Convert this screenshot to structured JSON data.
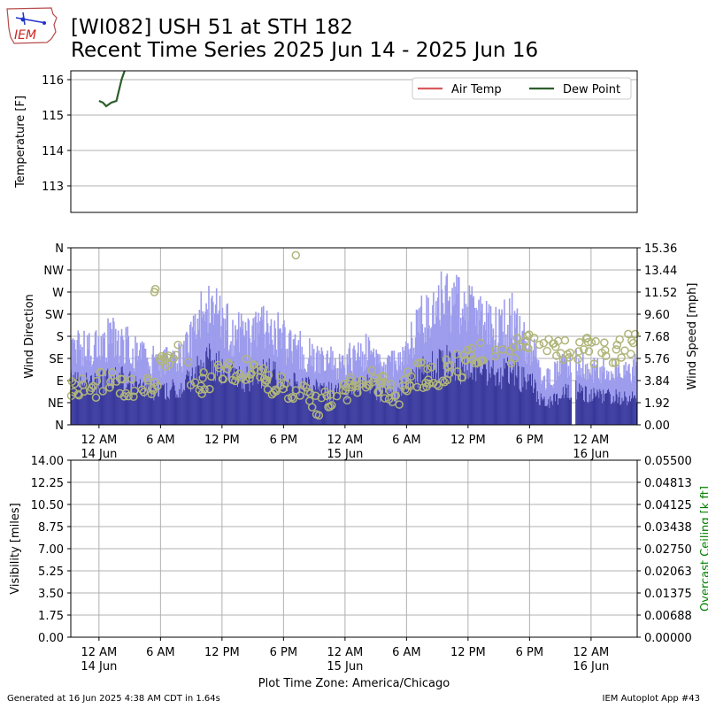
{
  "header": {
    "logo_text": "IEM",
    "title_line1": "[WI082] USH 51 at STH 182",
    "title_line2": "Recent Time Series 2025 Jun 14 - 2025 Jun 16"
  },
  "footer": {
    "left": "Generated at 16 Jun 2025 4:38 AM CDT in 1.64s",
    "right": "IEM Autoplot App #43"
  },
  "chart_data": [
    {
      "type": "line",
      "panel": "temperature",
      "ylabel": "Temperature [F]",
      "ylim": [
        112.25,
        116.25
      ],
      "yticks": [
        113,
        114,
        115,
        116
      ],
      "legend": {
        "placement": "top-right",
        "entries": [
          "Air Temp",
          "Dew Point"
        ]
      },
      "grid": true,
      "series": [
        {
          "name": "Air Temp",
          "color": "#d9595c",
          "points": []
        },
        {
          "name": "Dew Point",
          "color": "#2c5e2c",
          "points": [
            [
              0.0,
              115.4
            ],
            [
              0.4,
              115.35
            ],
            [
              0.7,
              115.25
            ],
            [
              1.2,
              115.35
            ],
            [
              1.7,
              115.4
            ],
            [
              2.2,
              116.0
            ],
            [
              2.5,
              116.25
            ]
          ]
        }
      ]
    },
    {
      "type": "bar",
      "panel": "wind",
      "ylabel": "Wind Direction",
      "y2label": "Wind Speed [mph]",
      "direction_ticks": [
        "N",
        "NE",
        "E",
        "SE",
        "S",
        "SW",
        "W",
        "NW",
        "N"
      ],
      "speed_ticks": [
        "0.00",
        "1.92",
        "3.84",
        "5.76",
        "7.68",
        "9.60",
        "11.52",
        "13.44",
        "15.36"
      ],
      "speed_max": 15.36,
      "x_range_hours": [
        -2.75,
        52.5
      ],
      "x_ticks": [
        {
          "hour": 0,
          "label": "12 AM",
          "date": "14 Jun"
        },
        {
          "hour": 6,
          "label": "6 AM",
          "date": ""
        },
        {
          "hour": 12,
          "label": "12 PM",
          "date": ""
        },
        {
          "hour": 18,
          "label": "6 PM",
          "date": ""
        },
        {
          "hour": 24,
          "label": "12 AM",
          "date": "15 Jun"
        },
        {
          "hour": 30,
          "label": "6 AM",
          "date": ""
        },
        {
          "hour": 36,
          "label": "12 PM",
          "date": ""
        },
        {
          "hour": 42,
          "label": "6 PM",
          "date": ""
        },
        {
          "hour": 48,
          "label": "12 AM",
          "date": "16 Jun"
        }
      ],
      "gust_color": "#9d9ced",
      "speed_color": "#37379a",
      "direction_color": "#b0b57a",
      "grid": true,
      "hourly_speed_mph": [
        3.6,
        3.7,
        3.6,
        3.7,
        3.9,
        4.0,
        3.6,
        3.2,
        3.0,
        2.9,
        3.1,
        3.4,
        4.2,
        5.6,
        5.3,
        4.6,
        4.2,
        4.0,
        4.3,
        4.6,
        4.3,
        3.7,
        3.5,
        3.3,
        3.1,
        2.9,
        2.8,
        3.0,
        3.3,
        3.4,
        2.8,
        2.7,
        2.9,
        3.5,
        4.4,
        5.0,
        5.3,
        5.4,
        5.0,
        4.9,
        4.7,
        4.5,
        4.3,
        4.8,
        4.0,
        3.6,
        1.9,
        2.1,
        2.6,
        3.1,
        2.7,
        2.5,
        2.4,
        2.4,
        2.3,
        2.6
      ],
      "hourly_gust_mph": [
        6.4,
        6.6,
        6.2,
        7.0,
        7.2,
        6.9,
        6.3,
        5.6,
        5.4,
        5.2,
        5.5,
        6.0,
        8.0,
        10.0,
        9.4,
        8.4,
        7.6,
        7.4,
        7.6,
        8.4,
        7.8,
        6.9,
        6.5,
        6.0,
        5.6,
        5.4,
        5.2,
        5.4,
        6.0,
        6.2,
        5.0,
        4.9,
        5.3,
        6.6,
        8.4,
        9.8,
        10.4,
        10.6,
        9.8,
        9.4,
        8.8,
        8.4,
        8.2,
        9.0,
        7.4,
        6.6,
        3.6,
        4.2,
        4.8,
        5.6,
        5.1,
        4.8,
        4.6,
        4.6,
        4.4,
        4.8
      ],
      "hourly_direction_deg": [
        75,
        70,
        80,
        85,
        80,
        78,
        85,
        80,
        90,
        120,
        160,
        125,
        86,
        88,
        100,
        105,
        110,
        115,
        120,
        95,
        85,
        80,
        78,
        70,
        40,
        50,
        60,
        75,
        80,
        95,
        87,
        60,
        65,
        90,
        100,
        105,
        95,
        115,
        120,
        130,
        150,
        135,
        130,
        145,
        175,
        160,
        150,
        165,
        155,
        155,
        165,
        150,
        160,
        150,
        170,
        165
      ],
      "direction_outliers": [
        [
          5.4,
          270
        ],
        [
          5.5,
          276
        ],
        [
          19.2,
          345
        ]
      ]
    },
    {
      "type": "line",
      "panel": "visibility",
      "ylabel": "Visibility [miles]",
      "y2label": "Overcast Ceiling [k ft]",
      "ylim": [
        0,
        14
      ],
      "yticks": [
        "0.00",
        "1.75",
        "3.50",
        "5.25",
        "7.00",
        "8.75",
        "10.50",
        "12.25",
        "14.00"
      ],
      "y2lim": [
        0,
        0.055
      ],
      "y2ticks": [
        "0.00000",
        "0.00688",
        "0.01375",
        "0.02063",
        "0.02750",
        "0.03438",
        "0.04125",
        "0.04813",
        "0.05500"
      ],
      "y2_color": "#008000",
      "xlabel": "Plot Time Zone: America/Chicago",
      "grid": true,
      "series": []
    }
  ]
}
